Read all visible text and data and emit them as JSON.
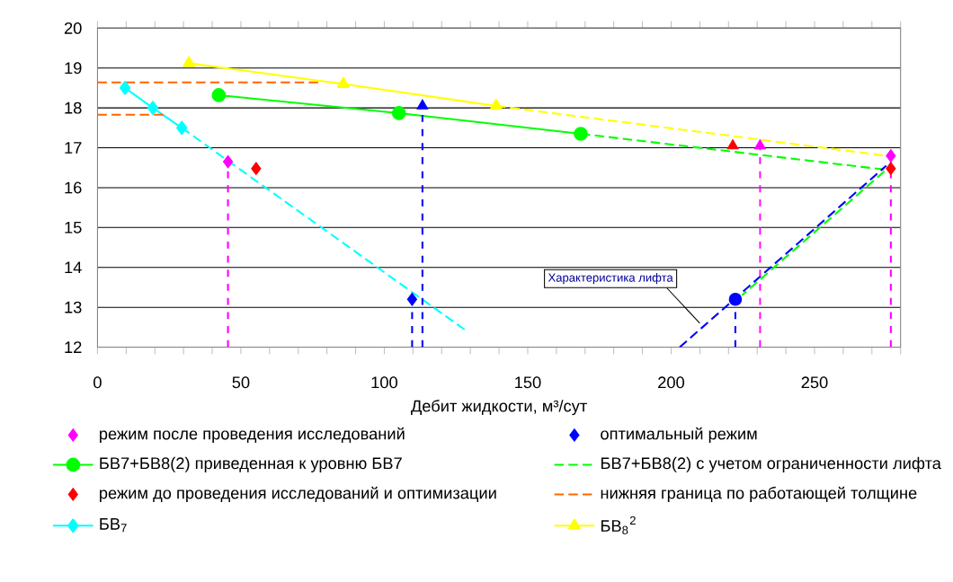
{
  "chart_data": {
    "type": "line",
    "xlabel": "Дебит жидкости, м³/сут",
    "xlim": [
      0,
      280
    ],
    "xticks": [
      0,
      {
        "value": 10,
        "label": null
      },
      {
        "value": 20,
        "label": null
      },
      {
        "value": 30,
        "label": null
      },
      {
        "value": 40,
        "label": null
      },
      50,
      {
        "value": 60,
        "label": null
      },
      {
        "value": 70,
        "label": null
      },
      {
        "value": 80,
        "label": null
      },
      {
        "value": 90,
        "label": null
      },
      100,
      {
        "value": 110,
        "label": null
      },
      {
        "value": 120,
        "label": null
      },
      {
        "value": 130,
        "label": null
      },
      {
        "value": 140,
        "label": null
      },
      150,
      {
        "value": 160,
        "label": null
      },
      {
        "value": 170,
        "label": null
      },
      {
        "value": 180,
        "label": null
      },
      {
        "value": 190,
        "label": null
      },
      200,
      {
        "value": 210,
        "label": null
      },
      {
        "value": 220,
        "label": null
      },
      {
        "value": 230,
        "label": null
      },
      {
        "value": 240,
        "label": null
      },
      250,
      {
        "value": 260,
        "label": null
      },
      {
        "value": 270,
        "label": null
      },
      {
        "value": 280,
        "label": null
      }
    ],
    "ylim": [
      12,
      20
    ],
    "yticks": [
      12,
      13,
      14,
      15,
      16,
      17,
      18,
      19,
      20
    ],
    "grid": "y",
    "legend": "bottom",
    "annotations": [
      {
        "text": "Характеристика лифта",
        "x": 210,
        "y": 12.6
      }
    ],
    "ref_lines": [
      {
        "axis": "x",
        "value": 45.5,
        "color": "#ff00ff",
        "line_style": "dashed"
      },
      {
        "axis": "x",
        "value": 109.7,
        "color": "#0000ff",
        "line_style": "dashed"
      },
      {
        "axis": "x",
        "value": 113.3,
        "color": "#0000ff",
        "line_style": "dashed"
      },
      {
        "axis": "x",
        "value": 222.4,
        "color": "#0000ff",
        "line_style": "dashed"
      },
      {
        "axis": "x",
        "value": 231,
        "color": "#ff00ff",
        "line_style": "dashed"
      },
      {
        "axis": "x",
        "value": 276.6,
        "color": "#ff00ff",
        "line_style": "dashed"
      }
    ],
    "series": [
      {
        "name": "режим после проведения исследований",
        "type": "scatter",
        "marker": "diamond",
        "color": "#ff00ff",
        "x": [
          45.5,
          276.6
        ],
        "values": [
          16.65,
          16.8
        ]
      },
      {
        "name": "оптимальный режим",
        "type": "scatter",
        "marker": "diamond",
        "color": "#0000ff",
        "x": [
          109.7
        ],
        "values": [
          13.2
        ]
      },
      {
        "name": "БВ7+БВ8(2) приведенная к уровню БВ7",
        "marker": "circle",
        "line_style": "solid",
        "color": "#00ff00",
        "x": [
          42.3,
          105.1,
          168.5
        ],
        "values": [
          18.32,
          17.87,
          17.35
        ]
      },
      {
        "name": "БВ7+БВ8(2) с учетом ограниченности лифта",
        "marker": "none",
        "line_style": "dashed",
        "color": "#00ff00",
        "x": [
          168.5,
          275,
          224.7
        ],
        "values": [
          17.35,
          16.45,
          13.3
        ]
      },
      {
        "name": "режим до проведения исследований и оптимизации",
        "type": "scatter",
        "marker": "diamond",
        "color": "#ff0000",
        "x": [
          55.3,
          276.6
        ],
        "values": [
          16.48,
          16.48
        ]
      },
      {
        "name": "нижняя граница по работающей толщине",
        "marker": "none",
        "line_style": "dashed",
        "color": "#ff6600",
        "x": [
          0,
          78
        ],
        "values": [
          18.64,
          18.64
        ]
      },
      {
        "name": "БВ$_{7}$",
        "marker": "diamond",
        "line_style": "solid",
        "color": "#00ffff",
        "x": [
          9.6,
          19.3,
          29.4
        ],
        "values": [
          18.5,
          18.0,
          17.5
        ]
      },
      {
        "name": "БВ$_{8}$$^{2}$",
        "marker": "triangle",
        "line_style": "solid",
        "color": "#ffff00",
        "x": [
          31.9,
          85.7,
          139
        ],
        "values": [
          19.12,
          18.6,
          18.05
        ]
      },
      {
        "marker": "none",
        "line_style": "dashed",
        "color": "#ff6600",
        "x": [
          0,
          23.8
        ],
        "values": [
          17.83,
          17.83
        ]
      },
      {
        "marker": "none",
        "line_style": "dashed",
        "color": "#00ffff",
        "x": [
          29.4,
          128.8
        ],
        "values": [
          17.5,
          12.4
        ]
      },
      {
        "marker": "none",
        "line_style": "dashed",
        "color": "#ffff00",
        "x": [
          139,
          275
        ],
        "values": [
          18.05,
          16.8
        ]
      },
      {
        "marker": "none",
        "line_style": "dashed",
        "color": "#0000ff",
        "x": [
          203,
          275
        ],
        "values": [
          12.0,
          16.55
        ]
      },
      {
        "type": "scatter",
        "marker": "triangle",
        "color": "#ff00ff",
        "x": [
          231
        ],
        "values": [
          17.05
        ]
      },
      {
        "type": "scatter",
        "marker": "triangle",
        "color": "#ff0000",
        "x": [
          221.5
        ],
        "values": [
          17.05
        ]
      },
      {
        "type": "scatter",
        "marker": "triangle",
        "color": "#0000ff",
        "x": [
          113.3
        ],
        "values": [
          18.05
        ]
      },
      {
        "type": "scatter",
        "marker": "circle",
        "color": "#0000ff",
        "x": [
          222.4
        ],
        "values": [
          13.2
        ]
      }
    ]
  }
}
